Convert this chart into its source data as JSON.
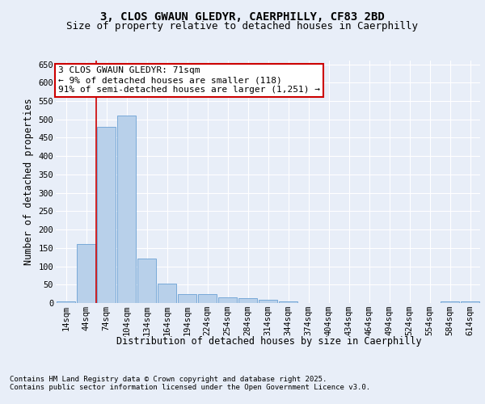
{
  "title_line1": "3, CLOS GWAUN GLEDYR, CAERPHILLY, CF83 2BD",
  "title_line2": "Size of property relative to detached houses in Caerphilly",
  "xlabel": "Distribution of detached houses by size in Caerphilly",
  "ylabel": "Number of detached properties",
  "categories": [
    "14sqm",
    "44sqm",
    "74sqm",
    "104sqm",
    "134sqm",
    "164sqm",
    "194sqm",
    "224sqm",
    "254sqm",
    "284sqm",
    "314sqm",
    "344sqm",
    "374sqm",
    "404sqm",
    "434sqm",
    "464sqm",
    "494sqm",
    "524sqm",
    "554sqm",
    "584sqm",
    "614sqm"
  ],
  "values": [
    5,
    160,
    480,
    510,
    120,
    52,
    25,
    25,
    15,
    14,
    9,
    4,
    0,
    0,
    0,
    0,
    0,
    0,
    0,
    5,
    4
  ],
  "bar_color": "#b8d0ea",
  "bar_edge_color": "#6aa0d4",
  "vline_x_index": 2,
  "vline_color": "#cc0000",
  "annotation_text": "3 CLOS GWAUN GLEDYR: 71sqm\n← 9% of detached houses are smaller (118)\n91% of semi-detached houses are larger (1,251) →",
  "annotation_box_edge_color": "#cc0000",
  "ylim": [
    0,
    660
  ],
  "yticks": [
    0,
    50,
    100,
    150,
    200,
    250,
    300,
    350,
    400,
    450,
    500,
    550,
    600,
    650
  ],
  "footer_line1": "Contains HM Land Registry data © Crown copyright and database right 2025.",
  "footer_line2": "Contains public sector information licensed under the Open Government Licence v3.0.",
  "bg_color": "#e8eef8",
  "plot_bg_color": "#e8eef8",
  "grid_color": "#ffffff",
  "title_fontsize": 10,
  "subtitle_fontsize": 9,
  "axis_label_fontsize": 8.5,
  "tick_fontsize": 7.5,
  "annotation_fontsize": 8,
  "footer_fontsize": 6.5
}
